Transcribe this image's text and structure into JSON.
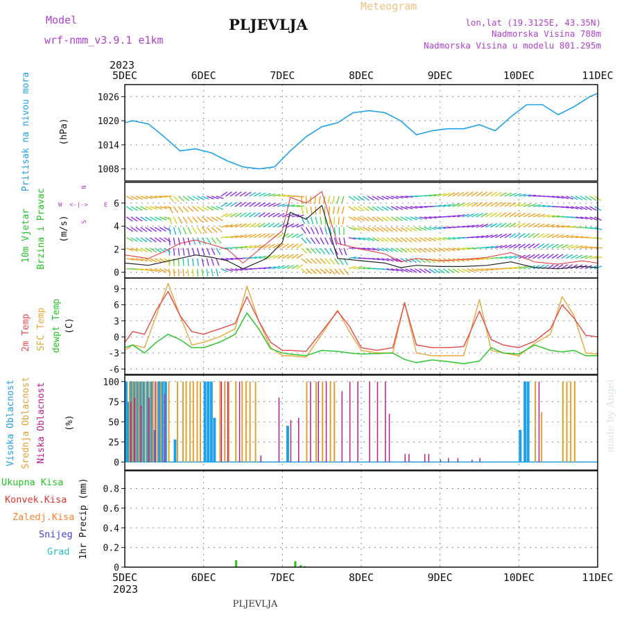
{
  "header": {
    "model_label": "Model",
    "model_name": "wrf-nmm_v3.9.1  e1km",
    "station": "PLJEVLJA",
    "product": "Meteogram",
    "lonlat": "lon,lat (19.3125E, 43.35N)",
    "elevation": "Nadmorska Visina 788m",
    "model_elevation": "Nadmorska Visina u modelu 801.295m",
    "footer_station": "PLJEVLJA",
    "watermark": "made by Angel"
  },
  "time_axis": {
    "year": "2023",
    "labels": [
      "5DEC",
      "6DEC",
      "7DEC",
      "8DEC",
      "9DEC",
      "10DEC",
      "11DEC"
    ],
    "range_days": [
      0,
      6
    ]
  },
  "panels": {
    "pressure": {
      "ylabel": "Pritisak na nivou mora",
      "unit": "(hPa)"
    },
    "wind": {
      "ylabel_1": "10m Vjetar",
      "ylabel_2": "Brzina i Pravac",
      "unit": "(m/s)",
      "compass": {
        "n": "N",
        "s": "S",
        "e": "E",
        "w": "W"
      }
    },
    "temp": {
      "ylabel_1": "2m Temp",
      "ylabel_2": "SFC Temp",
      "ylabel_3": "dewpt Temp",
      "unit": "(C)"
    },
    "cloud": {
      "ylabel_1": "Visoka Oblacnost",
      "ylabel_2": "Srednja Oblacnost",
      "ylabel_3": "Niska Oblacnost",
      "unit": "(%)"
    },
    "precip": {
      "unit": "1hr Precip (mm)",
      "legend": [
        "Ukupna Kisa",
        "Konvek.Kisa",
        "Zaledj.Kisa",
        "Snijeg",
        "Grad"
      ]
    }
  },
  "colors": {
    "pressure": "#1ea0ea",
    "temp2m": "#e84848",
    "sfc": "#e8a838",
    "dewpt": "#22c422",
    "wind_speed": "#222222",
    "gust": "#e83030",
    "high_cloud": "#1ea0ea",
    "mid_cloud": "#e0a030",
    "low_cloud": "#c01a8a",
    "legend": [
      "#22c422",
      "#e83030",
      "#ff8030",
      "#4040e0",
      "#20c0c0"
    ],
    "ylabel_pressure": "#1ea0ea",
    "ylabel_wind_1": "#22c422",
    "ylabel_wind_2": "#22c422",
    "model": "#b040d0"
  },
  "chart_data": [
    {
      "type": "line",
      "name": "pressure",
      "x": [
        0,
        0.1,
        0.3,
        0.5,
        0.7,
        0.9,
        1.1,
        1.3,
        1.5,
        1.7,
        1.9,
        2.1,
        2.3,
        2.5,
        2.7,
        2.9,
        3.1,
        3.3,
        3.5,
        3.7,
        3.9,
        4.1,
        4.3,
        4.5,
        4.7,
        4.9,
        5.1,
        5.3,
        5.5,
        5.7,
        5.9,
        6.0
      ],
      "y": [
        1019.5,
        1020,
        1019.2,
        1016,
        1012.5,
        1013,
        1012,
        1010,
        1008.5,
        1008,
        1008.5,
        1012.5,
        1016,
        1018.5,
        1019.5,
        1022,
        1022.5,
        1022,
        1020,
        1016.5,
        1017.5,
        1018,
        1018,
        1019,
        1017.5,
        1021,
        1024,
        1024,
        1021.5,
        1023.5,
        1026,
        1026.8
      ],
      "ylim": [
        1005,
        1029
      ],
      "yticks": [
        1008,
        1014,
        1020,
        1026
      ]
    },
    {
      "type": "line",
      "name": "wind",
      "x": [
        0,
        0.3,
        0.5,
        0.7,
        0.9,
        1.1,
        1.3,
        1.5,
        1.8,
        2.0,
        2.1,
        2.3,
        2.5,
        2.7,
        3.0,
        3.3,
        3.5,
        3.7,
        4.0,
        4.3,
        4.6,
        4.9,
        5.2,
        5.5,
        5.8,
        6.0
      ],
      "speed": [
        0.8,
        0.6,
        0.9,
        1.2,
        1.5,
        1.3,
        1.0,
        0.3,
        1.2,
        2.6,
        5.2,
        4.6,
        5.8,
        1.2,
        1.0,
        0.8,
        0.4,
        0.6,
        0.5,
        0.5,
        0.6,
        0.9,
        0.4,
        0.3,
        0.5,
        0.4
      ],
      "gust": [
        1.5,
        1.2,
        1.8,
        2.5,
        2.8,
        2.4,
        2.0,
        0.8,
        2.5,
        3.6,
        6.5,
        6.0,
        7.0,
        2.5,
        2.0,
        1.6,
        0.9,
        1.2,
        1.0,
        1.1,
        1.3,
        1.7,
        0.9,
        0.7,
        1.0,
        0.8
      ],
      "ylim": [
        -0.5,
        7.8
      ],
      "yticks": [
        0,
        2,
        4,
        6
      ]
    },
    {
      "type": "line",
      "name": "temperature",
      "x": [
        0,
        0.1,
        0.25,
        0.4,
        0.55,
        0.7,
        0.85,
        1.0,
        1.2,
        1.4,
        1.55,
        1.7,
        1.85,
        2.0,
        2.1,
        2.3,
        2.5,
        2.7,
        2.85,
        3.0,
        3.2,
        3.4,
        3.55,
        3.7,
        3.9,
        4.1,
        4.3,
        4.5,
        4.65,
        4.8,
        5.0,
        5.2,
        5.4,
        5.55,
        5.7,
        5.85,
        6.0
      ],
      "t2m": [
        -1,
        1,
        0.5,
        5,
        8.5,
        4,
        1,
        0.5,
        1.5,
        2.5,
        7.5,
        3,
        -1,
        -2.5,
        -2.5,
        -2.7,
        1,
        4.8,
        2,
        -2,
        -2.5,
        -2,
        6.3,
        -1.5,
        -2,
        -2,
        -1.8,
        4.8,
        -0.5,
        -1.5,
        -2,
        -0.8,
        1.5,
        6,
        3.5,
        0.3,
        0
      ],
      "sfc": [
        -2.5,
        -1.5,
        -2,
        4,
        10,
        4,
        -1.5,
        -1,
        0,
        1.5,
        9.5,
        3,
        -2,
        -3.5,
        -3.5,
        -3.8,
        0.5,
        5,
        1,
        -2.5,
        -3,
        -3,
        6.5,
        -3,
        -3.5,
        -3.5,
        -3.5,
        7,
        -2.5,
        -3,
        -3.5,
        -1.2,
        0.5,
        7.5,
        4,
        -3,
        -3.2
      ],
      "dew": [
        -2,
        -1.5,
        -3,
        -1,
        0.5,
        -0.5,
        -2,
        -2,
        -1,
        0.5,
        4.5,
        1.5,
        -2.2,
        -3,
        -3.2,
        -3.5,
        -2.5,
        -2.7,
        -3,
        -3.2,
        -3.1,
        -3,
        -4.2,
        -4.8,
        -4.3,
        -4.6,
        -5,
        -4.5,
        -2,
        -3,
        -3.2,
        -1.5,
        -2.5,
        -2.8,
        -2.5,
        -3.5,
        -3.5
      ],
      "ylim": [
        -7,
        11
      ],
      "yticks": [
        -6,
        -3,
        0,
        3,
        6,
        9
      ]
    },
    {
      "type": "bar",
      "name": "cloud_cover",
      "high": [
        [
          0.0,
          100
        ],
        [
          0.03,
          75
        ],
        [
          0.06,
          100
        ],
        [
          0.1,
          100
        ],
        [
          0.14,
          100
        ],
        [
          0.18,
          100
        ],
        [
          0.22,
          100
        ],
        [
          0.27,
          100
        ],
        [
          0.32,
          100
        ],
        [
          0.36,
          40
        ],
        [
          0.42,
          100
        ],
        [
          0.46,
          100
        ],
        [
          0.5,
          100
        ],
        [
          0.62,
          28
        ],
        [
          1.0,
          100
        ],
        [
          1.04,
          100
        ],
        [
          1.08,
          100
        ],
        [
          1.12,
          55
        ],
        [
          2.05,
          45
        ],
        [
          5.0,
          40
        ],
        [
          5.06,
          100
        ],
        [
          5.1,
          100
        ]
      ],
      "mid": [
        [
          0.05,
          100
        ],
        [
          0.09,
          100
        ],
        [
          0.13,
          100
        ],
        [
          0.17,
          100
        ],
        [
          0.21,
          100
        ],
        [
          0.26,
          100
        ],
        [
          0.31,
          100
        ],
        [
          0.35,
          100
        ],
        [
          0.4,
          100
        ],
        [
          0.45,
          100
        ],
        [
          0.55,
          100
        ],
        [
          0.66,
          100
        ],
        [
          0.73,
          100
        ],
        [
          0.77,
          100
        ],
        [
          0.82,
          100
        ],
        [
          0.86,
          100
        ],
        [
          0.91,
          100
        ],
        [
          0.95,
          100
        ],
        [
          1.2,
          100
        ],
        [
          1.26,
          100
        ],
        [
          1.31,
          100
        ],
        [
          1.4,
          100
        ],
        [
          1.48,
          100
        ],
        [
          1.53,
          100
        ],
        [
          1.58,
          100
        ],
        [
          1.65,
          100
        ],
        [
          2.3,
          100
        ],
        [
          2.42,
          100
        ],
        [
          2.5,
          100
        ],
        [
          2.6,
          100
        ],
        [
          2.65,
          100
        ],
        [
          5.2,
          100
        ],
        [
          5.28,
          62
        ],
        [
          5.55,
          100
        ],
        [
          5.6,
          100
        ],
        [
          5.65,
          100
        ],
        [
          5.7,
          100
        ]
      ],
      "low": [
        [
          0.07,
          75
        ],
        [
          0.12,
          80
        ],
        [
          0.2,
          70
        ],
        [
          0.3,
          80
        ],
        [
          0.38,
          100
        ],
        [
          0.5,
          85
        ],
        [
          1.22,
          100
        ],
        [
          1.3,
          100
        ],
        [
          1.45,
          100
        ],
        [
          1.72,
          8
        ],
        [
          1.95,
          80
        ],
        [
          2.1,
          52
        ],
        [
          2.2,
          55
        ],
        [
          2.35,
          100
        ],
        [
          2.45,
          100
        ],
        [
          2.55,
          100
        ],
        [
          2.75,
          88
        ],
        [
          2.85,
          100
        ],
        [
          2.95,
          100
        ],
        [
          3.1,
          100
        ],
        [
          3.2,
          100
        ],
        [
          3.3,
          100
        ],
        [
          3.35,
          60
        ],
        [
          3.55,
          10
        ],
        [
          3.6,
          10
        ],
        [
          3.8,
          10
        ],
        [
          3.85,
          10
        ],
        [
          4.0,
          3
        ],
        [
          4.1,
          5
        ],
        [
          4.22,
          5
        ],
        [
          4.4,
          3
        ],
        [
          4.5,
          5
        ],
        [
          5.25,
          100
        ]
      ],
      "ylim": [
        -10,
        108
      ],
      "yticks": [
        0,
        25,
        50,
        75,
        100
      ]
    },
    {
      "type": "bar",
      "name": "precipitation",
      "total": [
        [
          1.4,
          0.07
        ],
        [
          2.15,
          0.06
        ],
        [
          2.22,
          0.02
        ],
        [
          2.27,
          0.01
        ]
      ],
      "ylim": [
        0,
        0.98
      ],
      "yticks": [
        0,
        0.2,
        0.4,
        0.6,
        0.8
      ]
    }
  ]
}
